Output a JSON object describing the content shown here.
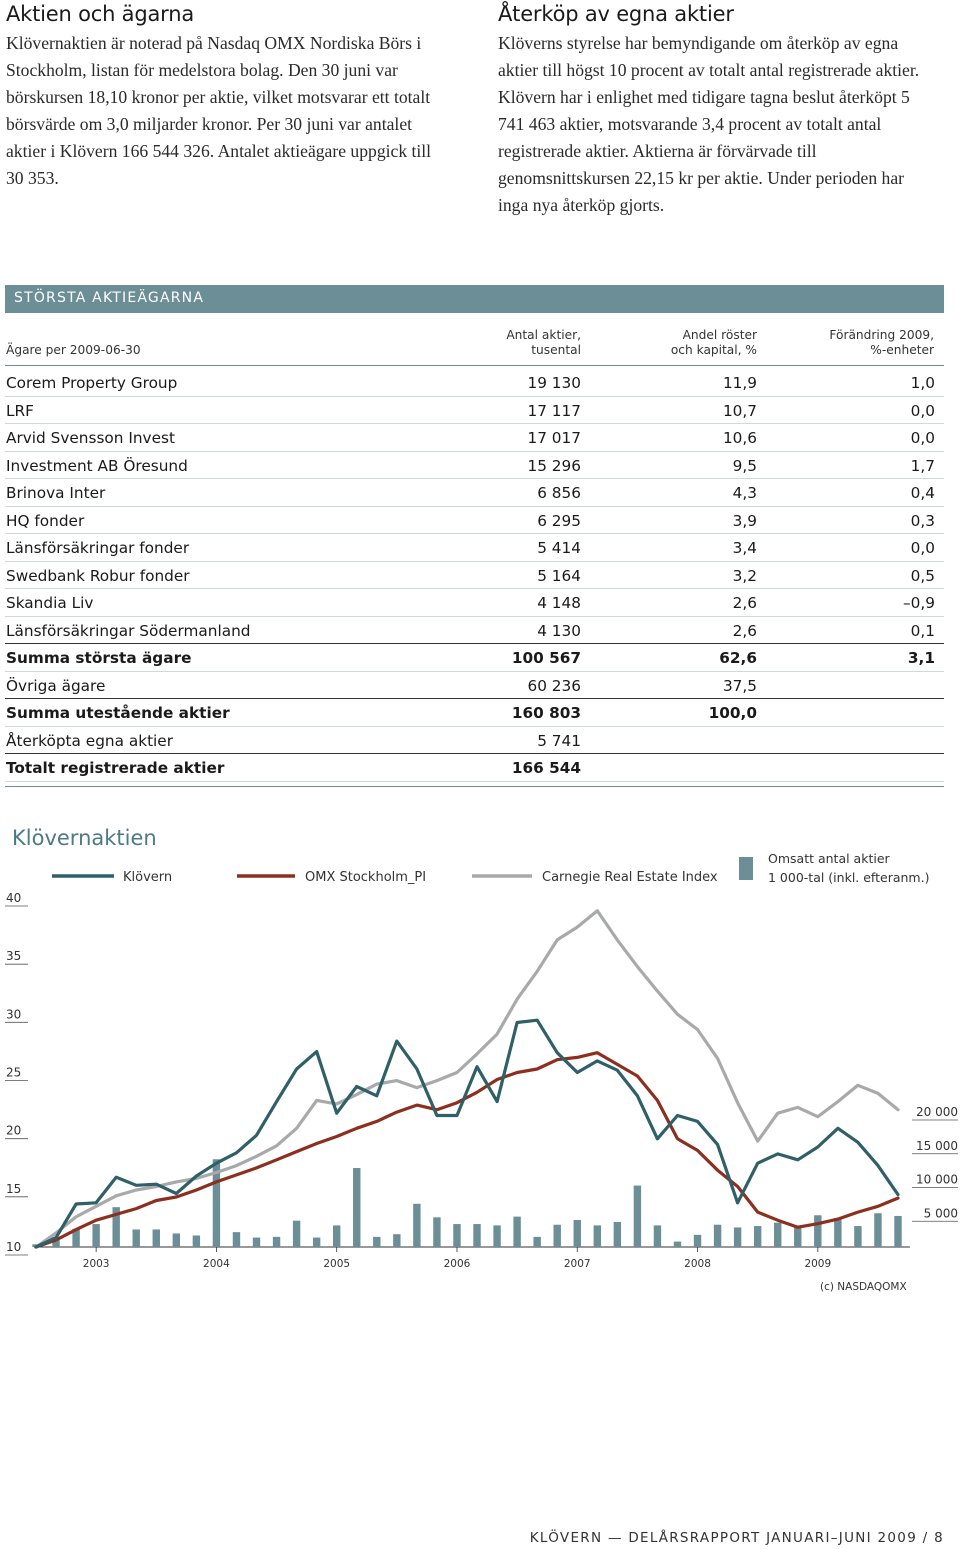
{
  "left": {
    "heading": "Aktien och ägarna",
    "body": "Klövernaktien är noterad på Nasdaq OMX Nordiska Börs i Stockholm, listan för medelstora bolag. Den 30 juni var börskursen 18,10 kronor per aktie, vilket motsvarar ett totalt börsvärde om 3,0 miljarder kronor. Per 30 juni var antalet aktier i Klövern 166 544 326. Antalet aktieägare uppgick till 30 353."
  },
  "right": {
    "heading": "Återköp av egna aktier",
    "body": "Klöverns styrelse har bemyndigande om återköp av egna aktier till högst 10 procent av totalt antal registrerade aktier. Klövern har i enlighet med tidigare tagna beslut återköpt 5 741 463 aktier, motsvarande 3,4 procent av totalt antal registrerade aktier. Aktierna är förvärvade till genomsnittskursen 22,15 kr per aktie. Under perioden har inga nya återköp gjorts."
  },
  "table": {
    "banner": "STÖRSTA AKTIEÄGARNA",
    "headers": {
      "owner": "Ägare per 2009-06-30",
      "shares_1": "Antal aktier,",
      "shares_2": "tusental",
      "votes_1": "Andel röster",
      "votes_2": "och kapital, %",
      "change_1": "Förändring 2009,",
      "change_2": "%-enheter"
    },
    "rows": [
      {
        "name": "Corem Property Group",
        "shares": "19 130",
        "pct": "11,9",
        "change": "1,0",
        "bold": false,
        "dark": false
      },
      {
        "name": "LRF",
        "shares": "17 117",
        "pct": "10,7",
        "change": "0,0",
        "bold": false,
        "dark": false
      },
      {
        "name": "Arvid Svensson Invest",
        "shares": "17 017",
        "pct": "10,6",
        "change": "0,0",
        "bold": false,
        "dark": false
      },
      {
        "name": "Investment AB Öresund",
        "shares": "15 296",
        "pct": "9,5",
        "change": "1,7",
        "bold": false,
        "dark": false
      },
      {
        "name": "Brinova Inter",
        "shares": "6 856",
        "pct": "4,3",
        "change": "0,4",
        "bold": false,
        "dark": false
      },
      {
        "name": "HQ fonder",
        "shares": "6 295",
        "pct": "3,9",
        "change": "0,3",
        "bold": false,
        "dark": false
      },
      {
        "name": "Länsförsäkringar fonder",
        "shares": "5 414",
        "pct": "3,4",
        "change": "0,0",
        "bold": false,
        "dark": false
      },
      {
        "name": "Swedbank Robur fonder",
        "shares": "5 164",
        "pct": "3,2",
        "change": "0,5",
        "bold": false,
        "dark": false
      },
      {
        "name": "Skandia Liv",
        "shares": "4 148",
        "pct": "2,6",
        "change": "–0,9",
        "bold": false,
        "dark": false
      },
      {
        "name": "Länsförsäkringar Södermanland",
        "shares": "4 130",
        "pct": "2,6",
        "change": "0,1",
        "bold": false,
        "dark": true
      },
      {
        "name": "Summa största ägare",
        "shares": "100 567",
        "pct": "62,6",
        "change": "3,1",
        "bold": true,
        "dark": false
      },
      {
        "name": "Övriga ägare",
        "shares": "60 236",
        "pct": "37,5",
        "change": "",
        "bold": false,
        "dark": true
      },
      {
        "name": "Summa utestående aktier",
        "shares": "160 803",
        "pct": "100,0",
        "change": "",
        "bold": true,
        "dark": false
      },
      {
        "name": "Återköpta egna aktier",
        "shares": "5 741",
        "pct": "",
        "change": "",
        "bold": false,
        "dark": true
      },
      {
        "name": "Totalt registrerade aktier",
        "shares": "166 544",
        "pct": "",
        "change": "",
        "bold": true,
        "dark": false
      }
    ]
  },
  "chart_title": "Klövernaktien",
  "chart_data": {
    "type": "line",
    "x_start": "2002-07",
    "x_step": "1 month",
    "y_left": {
      "ticks": [
        "10",
        "15",
        "20",
        "25",
        "30",
        "35",
        "40"
      ],
      "values": [
        10,
        15,
        20,
        25,
        30,
        35,
        40
      ]
    },
    "y_right": {
      "ticks": [
        "5 000",
        "10 000",
        "15 000",
        "20 000"
      ],
      "values": [
        5000,
        10000,
        15000,
        20000
      ]
    },
    "x_ticks": [
      "2003",
      "2004",
      "2005",
      "2006",
      "2007",
      "2008",
      "2009"
    ],
    "x_tick_months": [
      6,
      18,
      30,
      42,
      54,
      66,
      78
    ],
    "legend": [
      {
        "name": "Klövern",
        "color": "#2f5f68"
      },
      {
        "name": "OMX Stockholm_PI",
        "color": "#8c2f1e"
      },
      {
        "name": "Carnegie Real Estate Index",
        "color": "#a7a9ab"
      }
    ],
    "volume_legend_1": "Omsatt antal aktier",
    "volume_legend_2": "1 000-tal (inkl. efteranm.)",
    "volume_color": "#6b8e97",
    "source": "(c) NASDAQOMX",
    "series": [
      {
        "name": "Klövern",
        "color": "#2f5f68",
        "x": [
          0,
          2,
          4,
          6,
          8,
          10,
          12,
          14,
          16,
          18,
          20,
          22,
          24,
          26,
          28,
          30,
          32,
          34,
          36,
          38,
          40,
          42,
          44,
          46,
          48,
          50,
          52,
          54,
          56,
          58,
          60,
          62,
          64,
          66,
          68,
          70,
          72,
          74,
          76,
          78,
          80,
          82,
          84,
          86
        ],
        "y": [
          10.0,
          10.8,
          13.7,
          13.8,
          16.0,
          15.3,
          15.4,
          14.6,
          16.1,
          17.2,
          18.1,
          19.6,
          22.5,
          25.3,
          26.8,
          21.5,
          23.8,
          23.0,
          27.7,
          25.3,
          21.3,
          21.3,
          25.5,
          22.5,
          29.3,
          29.5,
          26.7,
          25.0,
          26.0,
          25.2,
          23.0,
          19.3,
          21.3,
          20.8,
          18.8,
          13.8,
          17.2,
          18.0,
          17.5,
          18.6,
          20.2,
          19.0,
          17.0,
          14.5
        ]
      },
      {
        "name": "OMX Stockholm_PI",
        "color": "#8c2f1e",
        "x": [
          0,
          2,
          4,
          6,
          8,
          10,
          12,
          14,
          16,
          18,
          20,
          22,
          24,
          26,
          28,
          30,
          32,
          34,
          36,
          38,
          40,
          42,
          44,
          46,
          48,
          50,
          52,
          54,
          56,
          58,
          60,
          62,
          64,
          66,
          68,
          70,
          72,
          74,
          76,
          78,
          80,
          82,
          84,
          86
        ],
        "y": [
          10.0,
          10.6,
          11.5,
          12.3,
          12.8,
          13.3,
          14.0,
          14.3,
          14.9,
          15.6,
          16.2,
          16.8,
          17.5,
          18.2,
          18.9,
          19.5,
          20.2,
          20.8,
          21.6,
          22.2,
          21.8,
          22.4,
          23.3,
          24.4,
          25.0,
          25.3,
          26.1,
          26.3,
          26.7,
          25.7,
          24.7,
          22.6,
          19.3,
          18.3,
          16.6,
          15.2,
          13.0,
          12.3,
          11.7,
          12.0,
          12.4,
          13.0,
          13.5,
          14.2
        ]
      },
      {
        "name": "Carnegie Real Estate Index",
        "color": "#a7a9ab",
        "x": [
          0,
          2,
          4,
          6,
          8,
          10,
          12,
          14,
          16,
          18,
          20,
          22,
          24,
          26,
          28,
          30,
          32,
          34,
          36,
          38,
          40,
          42,
          44,
          46,
          48,
          50,
          52,
          54,
          56,
          58,
          60,
          62,
          64,
          66,
          68,
          70,
          72,
          74,
          76,
          78,
          80,
          82,
          84,
          86
        ],
        "y": [
          10.0,
          11.2,
          12.6,
          13.5,
          14.4,
          14.9,
          15.2,
          15.6,
          15.9,
          16.4,
          17.0,
          17.8,
          18.7,
          20.2,
          22.6,
          22.3,
          23.1,
          24.0,
          24.3,
          23.7,
          24.3,
          25.0,
          26.6,
          28.3,
          31.3,
          33.7,
          36.4,
          37.5,
          38.9,
          36.4,
          34.1,
          32.0,
          30.0,
          28.7,
          26.2,
          22.4,
          19.1,
          21.5,
          22.0,
          21.2,
          22.5,
          23.9,
          23.2,
          21.8
        ]
      }
    ],
    "volume": {
      "x": [
        0,
        2,
        4,
        6,
        8,
        10,
        12,
        14,
        16,
        18,
        20,
        22,
        24,
        26,
        28,
        30,
        32,
        34,
        36,
        38,
        40,
        42,
        44,
        46,
        48,
        50,
        52,
        54,
        56,
        58,
        60,
        62,
        64,
        66,
        68,
        70,
        72,
        74,
        76,
        78,
        80,
        82,
        84,
        86
      ],
      "y": [
        400,
        1500,
        2700,
        3400,
        5900,
        2600,
        2600,
        2000,
        1700,
        13000,
        2200,
        1400,
        1500,
        3900,
        1400,
        3200,
        11700,
        1500,
        1900,
        6400,
        4400,
        3400,
        3400,
        3200,
        4500,
        1500,
        3300,
        4000,
        3200,
        3700,
        9100,
        3200,
        800,
        1800,
        3300,
        2900,
        3100,
        3600,
        3000,
        4700,
        4300,
        3100,
        5000,
        4600
      ]
    }
  },
  "footer": "KLÖVERN — DELÅRSRAPPORT JANUARI–JUNI 2009 / 8"
}
